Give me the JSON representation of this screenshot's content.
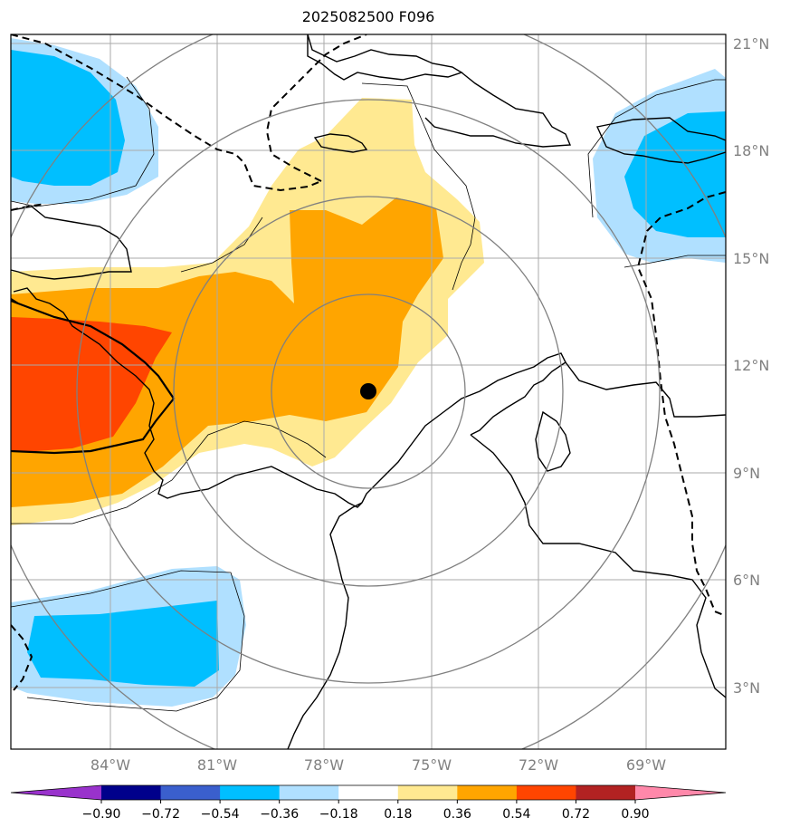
{
  "title": "2025082500 F096",
  "map": {
    "lon_labels": [
      "84°W",
      "81°W",
      "78°W",
      "75°W",
      "72°W",
      "69°W"
    ],
    "lat_labels": [
      "21°N",
      "18°N",
      "15°N",
      "12°N",
      "9°N",
      "6°N",
      "3°N"
    ]
  },
  "colorbar": {
    "labels": [
      "−0.90",
      "−0.72",
      "−0.54",
      "−0.36",
      "−0.18",
      "0.18",
      "0.36",
      "0.54",
      "0.72",
      "0.90"
    ],
    "colors": [
      "#9932cc",
      "#00008b",
      "#3a5fcd",
      "#00bfff",
      "#b0e0ff",
      "#ffffff",
      "#ffe991",
      "#ffa500",
      "#ff4500",
      "#b22222",
      "#ff88aa"
    ]
  },
  "colors": {
    "light_blue": "#b0e0ff",
    "blue": "#00bfff",
    "light_yellow": "#ffe991",
    "orange": "#ffa500",
    "red_orange": "#ff4500",
    "grid": "#aaaaaa",
    "range_rings": "#808080"
  }
}
